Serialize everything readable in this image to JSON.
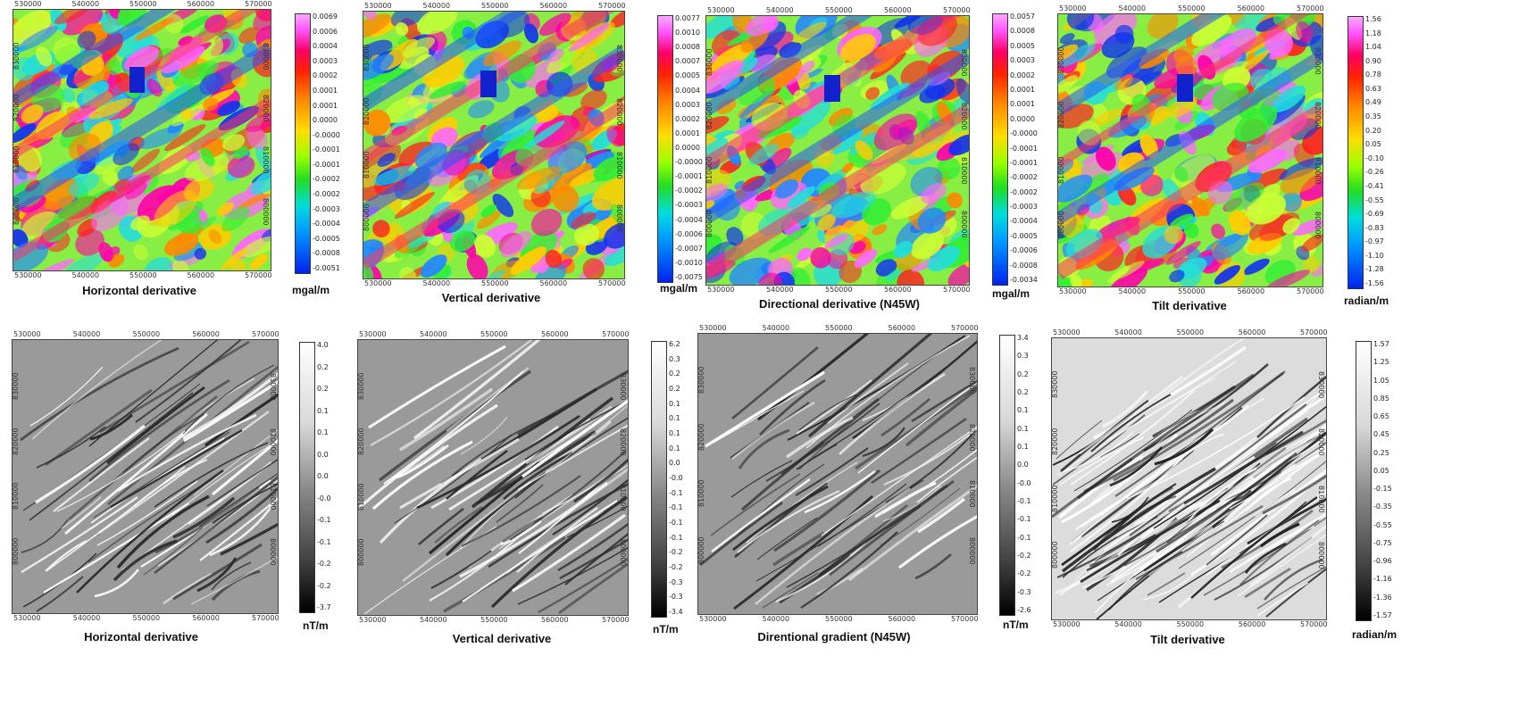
{
  "panels": [
    {
      "caption": "Horizontal derivative",
      "unit": "mgal/m",
      "scale": [
        "0.0069",
        "0.0006",
        "0.0004",
        "0.0003",
        "0.0002",
        "0.0001",
        "0.0001",
        "0.0000",
        "-0.0000",
        "-0.0001",
        "-0.0001",
        "-0.0002",
        "-0.0002",
        "-0.0003",
        "-0.0004",
        "-0.0005",
        "-0.0008",
        "-0.0051"
      ],
      "x_ticks_top": [
        "530000",
        "540000",
        "550000",
        "560000",
        "570000"
      ],
      "x_ticks_bottom": [
        "530000",
        "540000",
        "550000",
        "560000",
        "570000"
      ],
      "y_ticks_left": [
        "830000",
        "820000",
        "810000",
        "800000"
      ],
      "y_ticks_right": [
        "830000",
        "820000",
        "810000",
        "800000"
      ],
      "colormap": "color"
    },
    {
      "caption": "Vertical derivative",
      "unit": "mgal/m",
      "scale": [
        "0.0077",
        "0.0010",
        "0.0008",
        "0.0007",
        "0.0005",
        "0.0004",
        "0.0003",
        "0.0002",
        "0.0001",
        "0.0000",
        "-0.0000",
        "-0.0001",
        "-0.0002",
        "-0.0003",
        "-0.0004",
        "-0.0006",
        "-0.0007",
        "-0.0010",
        "-0.0075"
      ],
      "x_ticks_top": [
        "530000",
        "540000",
        "550000",
        "560000",
        "570000"
      ],
      "x_ticks_bottom": [
        "530000",
        "540000",
        "550000",
        "560000",
        "570000"
      ],
      "y_ticks_left": [
        "830000",
        "820000",
        "810000",
        "800000"
      ],
      "y_ticks_right": [
        "830000",
        "820000",
        "810000",
        "800000"
      ],
      "colormap": "color"
    },
    {
      "caption": "Directional derivative (N45W)",
      "unit": "mgal/m",
      "scale": [
        "0.0057",
        "0.0008",
        "0.0005",
        "0.0003",
        "0.0002",
        "0.0001",
        "0.0001",
        "0.0000",
        "-0.0000",
        "-0.0001",
        "-0.0001",
        "-0.0002",
        "-0.0002",
        "-0.0003",
        "-0.0004",
        "-0.0005",
        "-0.0006",
        "-0.0008",
        "-0.0034"
      ],
      "x_ticks_top": [
        "530000",
        "540000",
        "550000",
        "560000",
        "570000"
      ],
      "x_ticks_bottom": [
        "530000",
        "540000",
        "550000",
        "560000",
        "570000"
      ],
      "y_ticks_left": [
        "830000",
        "820000",
        "810000",
        "800000"
      ],
      "y_ticks_right": [
        "830000",
        "820000",
        "810000",
        "800000"
      ],
      "colormap": "color"
    },
    {
      "caption": "Tilt derivative",
      "unit": "radian/m",
      "scale": [
        "1.56",
        "1.18",
        "1.04",
        "0.90",
        "0.78",
        "0.63",
        "0.49",
        "0.35",
        "0.20",
        "0.05",
        "-0.10",
        "-0.26",
        "-0.41",
        "-0.55",
        "-0.69",
        "-0.83",
        "-0.97",
        "-1.10",
        "-1.28",
        "-1.56"
      ],
      "x_ticks_top": [
        "530000",
        "540000",
        "550000",
        "560000",
        "570000"
      ],
      "x_ticks_bottom": [
        "530000",
        "540000",
        "550000",
        "560000",
        "570000"
      ],
      "y_ticks_left": [
        "830000",
        "820000",
        "810000",
        "800000"
      ],
      "y_ticks_right": [
        "830000",
        "820000",
        "810000",
        "800000"
      ],
      "colormap": "color"
    },
    {
      "caption": "Horizontal derivative",
      "unit": "nT/m",
      "scale": [
        "4.0",
        "0.2",
        "0.2",
        "0.1",
        "0.1",
        "0.0",
        "0.0",
        "-0.0",
        "-0.1",
        "-0.1",
        "-0.2",
        "-0.2",
        "-3.7"
      ],
      "x_ticks_top": [
        "530000",
        "540000",
        "550000",
        "560000",
        "570000"
      ],
      "x_ticks_bottom": [
        "530000",
        "540000",
        "550000",
        "560000",
        "570000"
      ],
      "y_ticks_left": [
        "830000",
        "820000",
        "810000",
        "800000"
      ],
      "y_ticks_right": [
        "830000",
        "820000",
        "810000",
        "800000"
      ],
      "colormap": "gray"
    },
    {
      "caption": "Vertical derivative",
      "unit": "nT/m",
      "scale": [
        "6.2",
        "0.3",
        "0.2",
        "0.2",
        "0.1",
        "0.1",
        "0.1",
        "0.1",
        "0.0",
        "-0.0",
        "-0.1",
        "-0.1",
        "-0.1",
        "-0.1",
        "-0.2",
        "-0.2",
        "-0.3",
        "-0.3",
        "-3.4"
      ],
      "x_ticks_top": [
        "530000",
        "540000",
        "550000",
        "560000",
        "570000"
      ],
      "x_ticks_bottom": [
        "530000",
        "540000",
        "550000",
        "560000",
        "570000"
      ],
      "y_ticks_left": [
        "830000",
        "820000",
        "810000",
        "800000"
      ],
      "y_ticks_right": [
        "830000",
        "820000",
        "810000",
        "800000"
      ],
      "colormap": "gray"
    },
    {
      "caption": "Direntional gradient (N45W)",
      "unit": "nT/m",
      "scale": [
        "3.4",
        "0.3",
        "0.2",
        "0.2",
        "0.1",
        "0.1",
        "0.1",
        "0.0",
        "-0.0",
        "-0.1",
        "-0.1",
        "-0.1",
        "-0.2",
        "-0.2",
        "-0.3",
        "-2.6"
      ],
      "x_ticks_top": [
        "530000",
        "540000",
        "550000",
        "560000",
        "570000"
      ],
      "x_ticks_bottom": [
        "530000",
        "540000",
        "550000",
        "560000",
        "570000"
      ],
      "y_ticks_left": [
        "830000",
        "820000",
        "810000",
        "800000"
      ],
      "y_ticks_right": [
        "830000",
        "820000",
        "810000",
        "800000"
      ],
      "colormap": "gray"
    },
    {
      "caption": "Tilt derivative",
      "unit": "radian/m",
      "scale": [
        "1.57",
        "1.25",
        "1.05",
        "0.85",
        "0.65",
        "0.45",
        "0.25",
        "0.05",
        "-0.15",
        "-0.35",
        "-0.55",
        "-0.75",
        "-0.96",
        "-1.16",
        "-1.36",
        "-1.57"
      ],
      "x_ticks_top": [
        "530000",
        "540000",
        "550000",
        "560000",
        "570000"
      ],
      "x_ticks_bottom": [
        "530000",
        "540000",
        "550000",
        "560000",
        "570000"
      ],
      "y_ticks_left": [
        "830000",
        "820000",
        "810000",
        "800000"
      ],
      "y_ticks_right": [
        "830000",
        "820000",
        "810000",
        "800000"
      ],
      "colormap": "gray"
    }
  ]
}
